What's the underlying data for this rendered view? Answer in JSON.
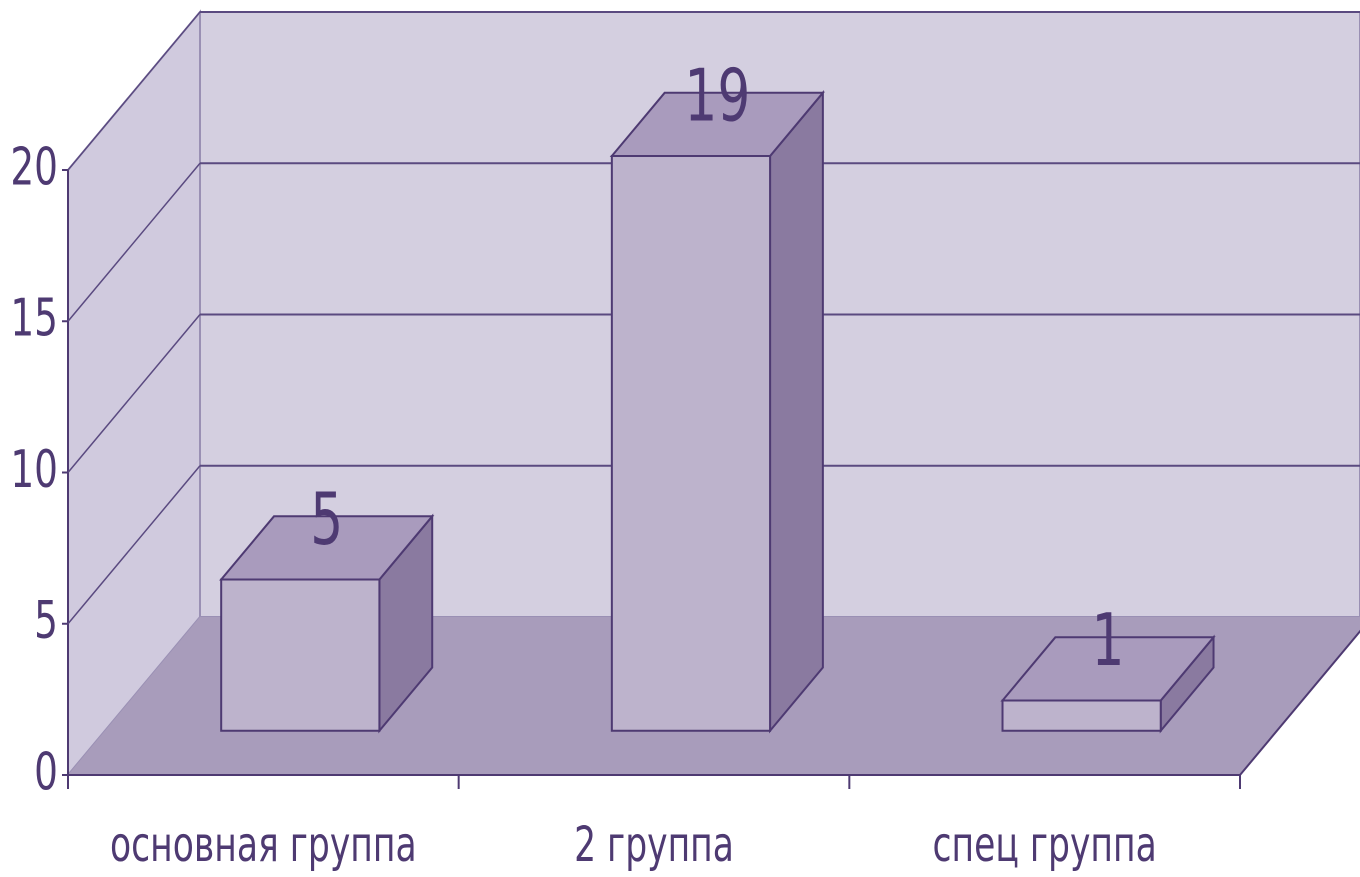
{
  "chart_data": {
    "type": "bar3d",
    "categories": [
      "основная группа",
      "2 группа",
      "спец группа"
    ],
    "values": [
      5,
      19,
      1
    ],
    "color": "#bdb3cc",
    "ylim": [
      0,
      20
    ],
    "yticks": [
      0,
      5,
      10,
      15,
      20
    ],
    "grid": true
  }
}
